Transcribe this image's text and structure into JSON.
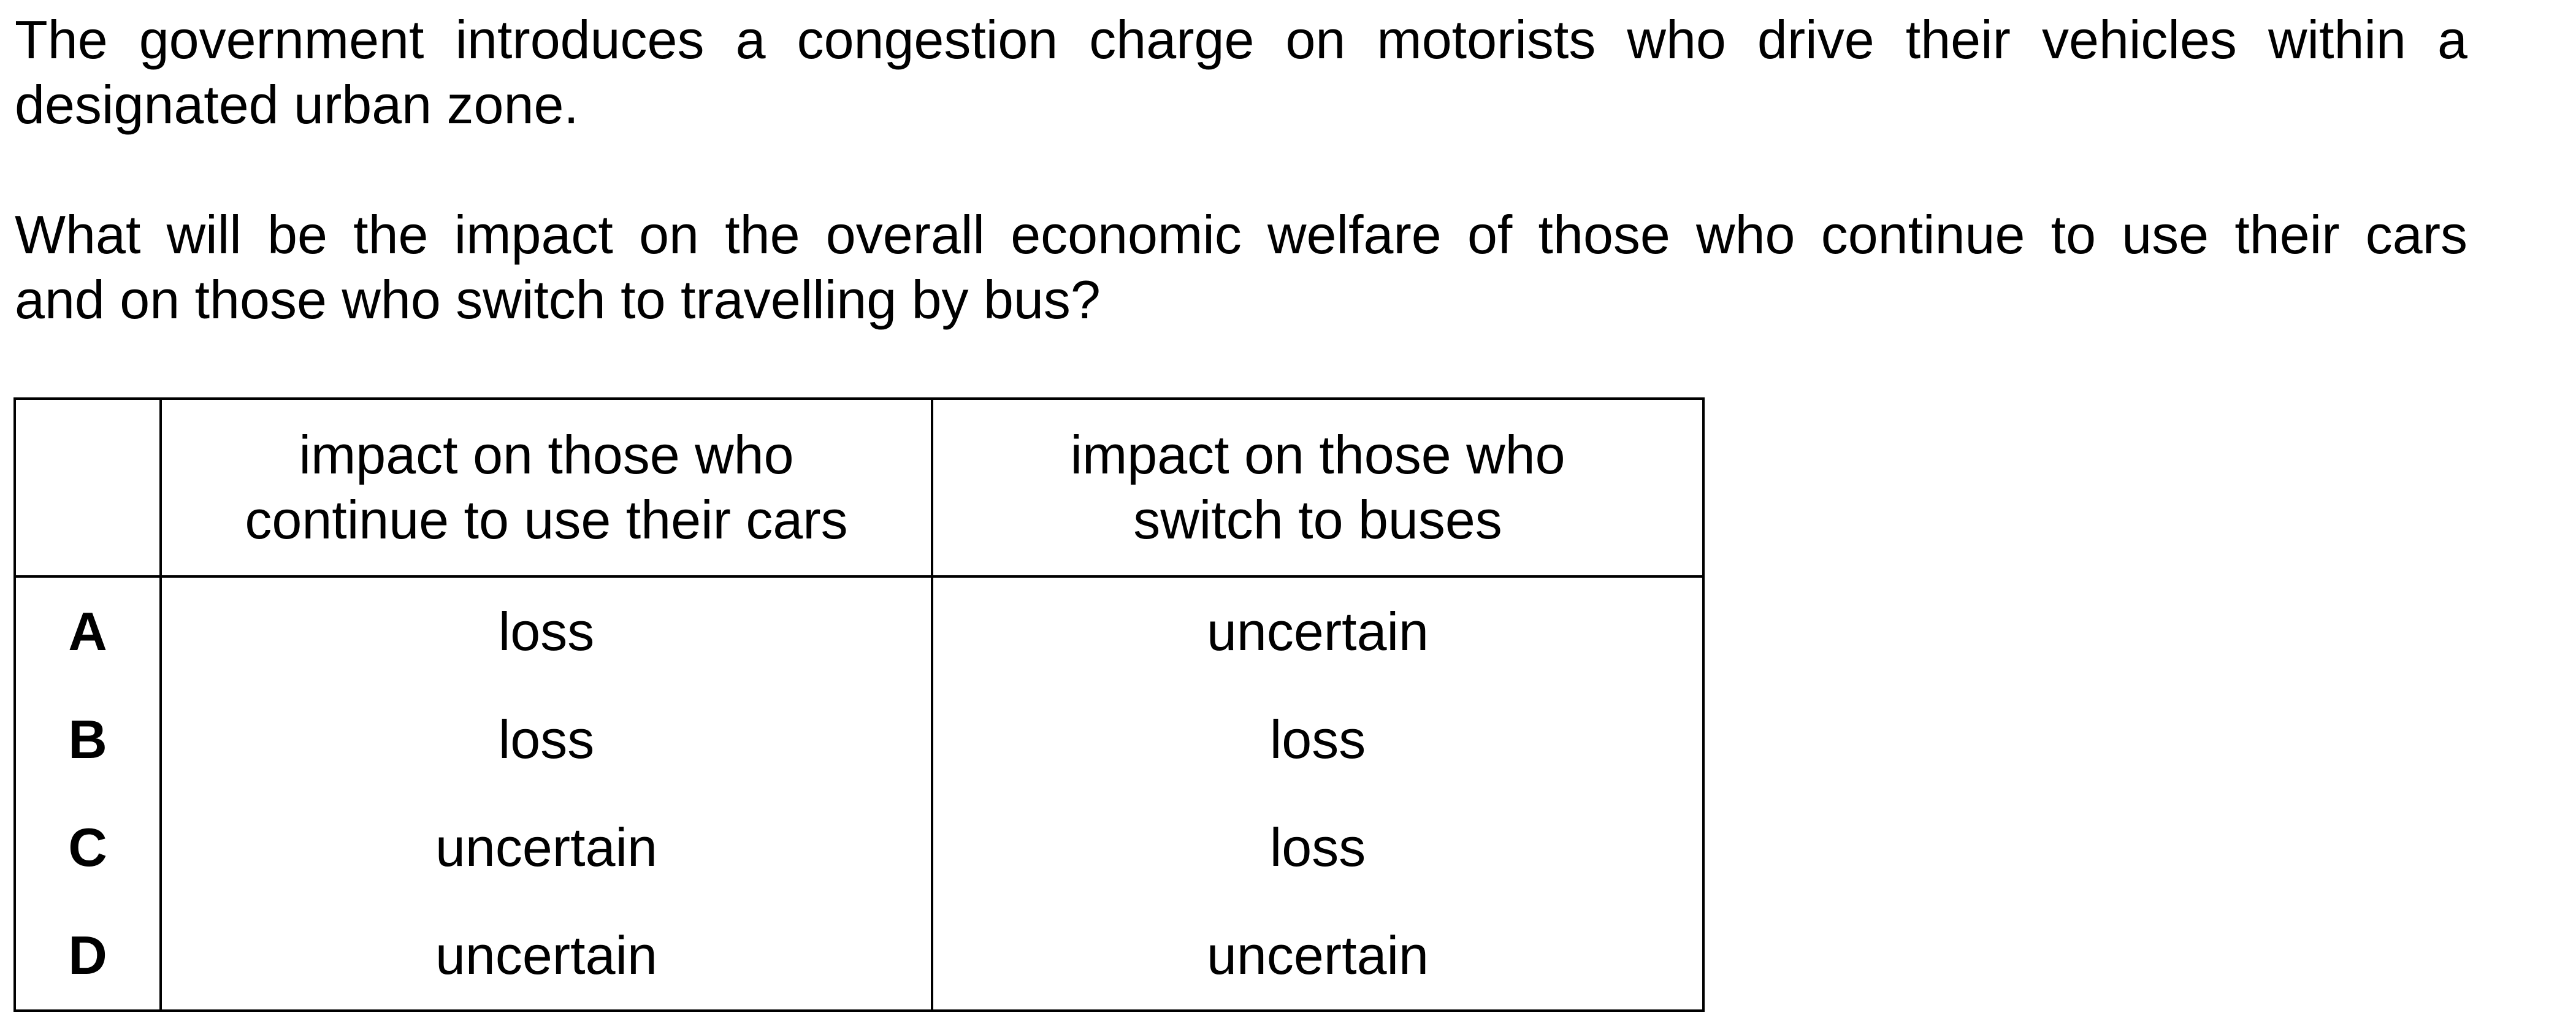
{
  "stem": {
    "line1": "The government introduces a congestion charge on motorists who drive their vehicles within a",
    "line2": "designated urban zone."
  },
  "question": {
    "line1": "What will be the impact on the overall economic welfare of those who continue to use their cars",
    "line2": "and on those who switch to travelling by bus?"
  },
  "table": {
    "headers": {
      "letter": "",
      "cars_line1": "impact on those who",
      "cars_line2": "continue to use their cars",
      "bus_line1": "impact on those who",
      "bus_line2": "switch to buses"
    },
    "rows": [
      {
        "letter": "A",
        "cars": "loss",
        "bus": "uncertain"
      },
      {
        "letter": "B",
        "cars": "loss",
        "bus": "loss"
      },
      {
        "letter": "C",
        "cars": "uncertain",
        "bus": "loss"
      },
      {
        "letter": "D",
        "cars": "uncertain",
        "bus": "uncertain"
      }
    ]
  }
}
